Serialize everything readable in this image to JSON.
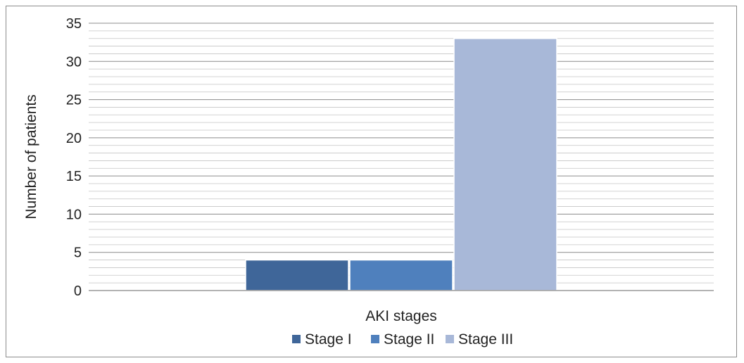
{
  "chart_data": {
    "type": "bar",
    "title": "",
    "xlabel": "AKI stages",
    "ylabel": "Number of patients",
    "categories": [
      ""
    ],
    "ylim": [
      0,
      35
    ],
    "y_major_step": 5,
    "y_minor_step": 1,
    "y_ticks": [
      "0",
      "5",
      "10",
      "15",
      "20",
      "25",
      "30",
      "35"
    ],
    "grid": true,
    "legend_position": "bottom",
    "series": [
      {
        "name": "Stage I",
        "values": [
          4
        ],
        "color": "#3f6699"
      },
      {
        "name": "Stage II",
        "values": [
          4
        ],
        "color": "#4f80bd"
      },
      {
        "name": "Stage III",
        "values": [
          33
        ],
        "color": "#a8b8d8"
      }
    ]
  }
}
